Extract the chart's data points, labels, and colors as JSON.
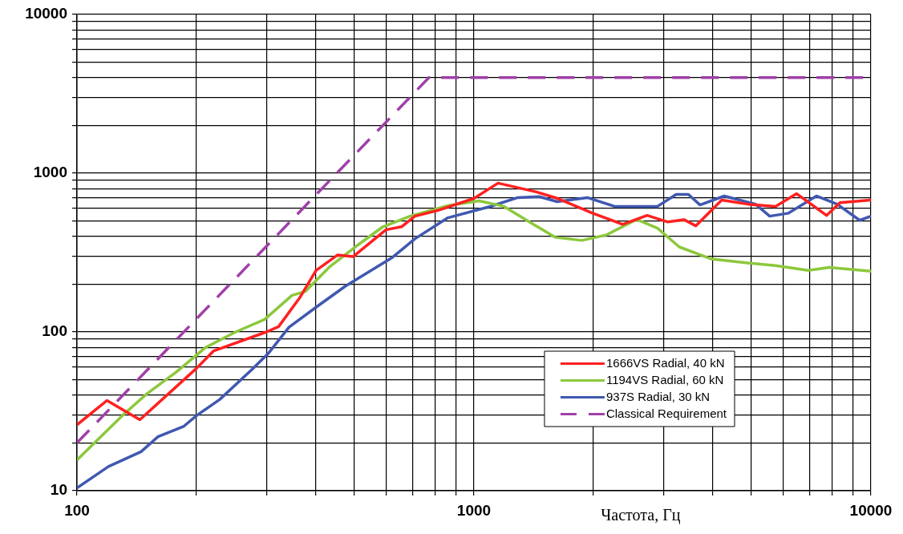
{
  "chart_data": {
    "type": "line",
    "xlabel": "Частота, Гц",
    "log": "xy",
    "grid": true,
    "legend": "bottom right",
    "marker": "none",
    "xlim": [
      100,
      10000
    ],
    "ylim": [
      10,
      10000
    ],
    "xticks": [
      100,
      {
        "value": 200,
        "label": null
      },
      {
        "value": 300,
        "label": null
      },
      {
        "value": 400,
        "label": null
      },
      {
        "value": 500,
        "label": null
      },
      {
        "value": 600,
        "label": null
      },
      {
        "value": 700,
        "label": null
      },
      {
        "value": 800,
        "label": null
      },
      {
        "value": 900,
        "label": null
      },
      1000,
      {
        "value": 2000,
        "label": null
      },
      {
        "value": 3000,
        "label": null
      },
      {
        "value": 4000,
        "label": null
      },
      {
        "value": 5000,
        "label": null
      },
      {
        "value": 6000,
        "label": null
      },
      {
        "value": 7000,
        "label": null
      },
      {
        "value": 8000,
        "label": null
      },
      {
        "value": 9000,
        "label": null
      },
      10000
    ],
    "yticks": [
      10,
      {
        "value": 20,
        "label": null
      },
      {
        "value": 30,
        "label": null
      },
      {
        "value": 40,
        "label": null
      },
      {
        "value": 50,
        "label": null
      },
      {
        "value": 60,
        "label": null
      },
      {
        "value": 70,
        "label": null
      },
      {
        "value": 80,
        "label": null
      },
      {
        "value": 90,
        "label": null
      },
      100,
      {
        "value": 200,
        "label": null
      },
      {
        "value": 300,
        "label": null
      },
      {
        "value": 400,
        "label": null
      },
      {
        "value": 500,
        "label": null
      },
      {
        "value": 600,
        "label": null
      },
      {
        "value": 700,
        "label": null
      },
      {
        "value": 800,
        "label": null
      },
      {
        "value": 900,
        "label": null
      },
      1000,
      {
        "value": 2000,
        "label": null
      },
      {
        "value": 3000,
        "label": null
      },
      {
        "value": 4000,
        "label": null
      },
      {
        "value": 5000,
        "label": null
      },
      {
        "value": 6000,
        "label": null
      },
      {
        "value": 7000,
        "label": null
      },
      {
        "value": 8000,
        "label": null
      },
      {
        "value": 9000,
        "label": null
      },
      10000
    ],
    "series": [
      {
        "name": "1666VS Radial, 40 kN",
        "color": "#ff2020",
        "line_style": "solid",
        "x": [
          100,
          119,
          144,
          200,
          221,
          300,
          322,
          365,
          400,
          453,
          496,
          600,
          657,
          710,
          809,
          1000,
          1150,
          1436,
          1625,
          1990,
          2368,
          2730,
          3080,
          3380,
          3620,
          4210,
          4900,
          5750,
          6500,
          7730,
          8360,
          10000
        ],
        "values": [
          26,
          37,
          28,
          59,
          76,
          100,
          108,
          166,
          244,
          305,
          298,
          440,
          460,
          536,
          582,
          693,
          866,
          762,
          693,
          560,
          476,
          542,
          493,
          510,
          466,
          678,
          638,
          618,
          743,
          542,
          653,
          678
        ]
      },
      {
        "name": "1194VS Radial, 60 kN",
        "color": "#8cc83c",
        "line_style": "solid",
        "x": [
          100,
          130,
          150,
          178,
          211,
          251,
          297,
          348,
          376,
          432,
          506,
          590,
          690,
          860,
          1030,
          1190,
          1390,
          1600,
          1870,
          2160,
          2570,
          2900,
          3290,
          3970,
          4900,
          5750,
          6960,
          7850,
          10000
        ],
        "values": [
          15.6,
          29.7,
          40.8,
          56,
          80,
          100,
          120,
          170,
          180,
          256,
          348,
          460,
          536,
          624,
          670,
          618,
          488,
          395,
          377,
          409,
          511,
          450,
          343,
          288,
          272,
          262,
          244,
          255,
          241
        ]
      },
      {
        "name": "937S Radial, 30 kN",
        "color": "#4058b0",
        "line_style": "solid",
        "x": [
          100,
          120,
          145,
          160,
          186,
          200,
          229,
          276,
          303,
          342,
          400,
          474,
          620,
          710,
          860,
          1100,
          1290,
          1460,
          1620,
          1930,
          2260,
          2900,
          3230,
          3470,
          3710,
          4270,
          5120,
          5560,
          6200,
          7290,
          8220,
          9370,
          10000
        ],
        "values": [
          10.4,
          14.2,
          17.6,
          21.9,
          25.5,
          29.7,
          37.6,
          58,
          73,
          107,
          143,
          194,
          292,
          386,
          524,
          617,
          702,
          712,
          662,
          702,
          618,
          618,
          735,
          735,
          631,
          718,
          638,
          536,
          560,
          718,
          638,
          505,
          536
        ]
      },
      {
        "name": "Classical Requirement",
        "color": "#a040a8",
        "line_style": "dashed",
        "x": [
          100,
          770,
          10000
        ],
        "values": [
          20,
          4000,
          4000
        ]
      }
    ]
  }
}
